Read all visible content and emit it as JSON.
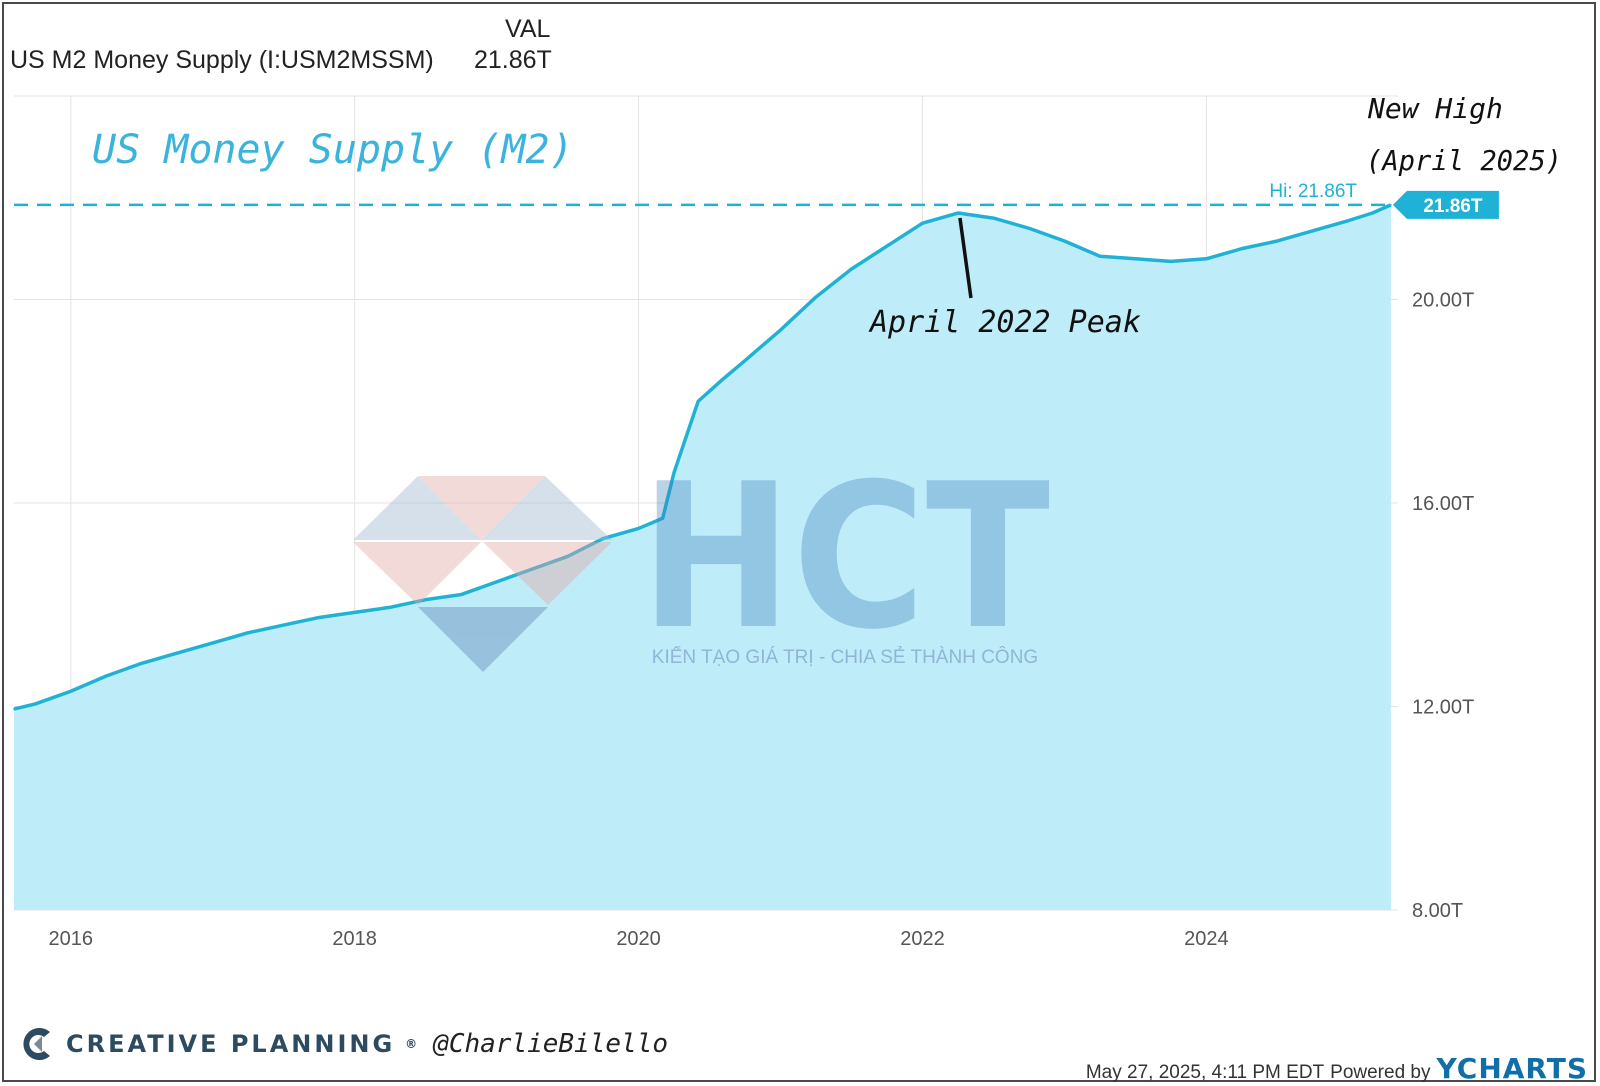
{
  "header": {
    "val_heading": "VAL",
    "series_name": "US M2 Money Supply (I:USM2MSSM)",
    "series_value": "21.86T"
  },
  "colors": {
    "line": "#1fb2d6",
    "fill": "#bfecf9",
    "title": "#3ab4dc",
    "grid": "#e3e3e3",
    "badge": "#1fb2d6"
  },
  "chart_data": {
    "type": "area",
    "title": "US Money Supply (M2)",
    "xlabel": "",
    "ylabel": "",
    "xlim": [
      2015.6,
      2025.35
    ],
    "ylim": [
      8,
      24
    ],
    "x_ticks": [
      2016,
      2018,
      2020,
      2022,
      2024
    ],
    "x_tick_labels": [
      "2016",
      "2018",
      "2020",
      "2022",
      "2024"
    ],
    "y_ticks": [
      8,
      12,
      16,
      20
    ],
    "y_tick_labels": [
      "8.00T",
      "12.00T",
      "16.00T",
      "20.00T"
    ],
    "grid": true,
    "series": [
      {
        "name": "",
        "x": [
          2015.6,
          2015.75,
          2016.0,
          2016.25,
          2016.5,
          2016.75,
          2017.0,
          2017.25,
          2017.5,
          2017.75,
          2018.0,
          2018.25,
          2018.5,
          2018.75,
          2019.0,
          2019.25,
          2019.5,
          2019.75,
          2020.0,
          2020.17,
          2020.25,
          2020.42,
          2020.58,
          2020.75,
          2021.0,
          2021.25,
          2021.5,
          2021.75,
          2022.0,
          2022.25,
          2022.5,
          2022.75,
          2023.0,
          2023.25,
          2023.5,
          2023.75,
          2024.0,
          2024.25,
          2024.5,
          2024.75,
          2025.0,
          2025.17,
          2025.3
        ],
        "y": [
          11.95,
          12.05,
          12.3,
          12.6,
          12.85,
          13.05,
          13.25,
          13.45,
          13.6,
          13.75,
          13.85,
          13.95,
          14.1,
          14.2,
          14.45,
          14.7,
          14.95,
          15.3,
          15.5,
          15.7,
          16.6,
          18.0,
          18.4,
          18.8,
          19.4,
          20.05,
          20.6,
          21.05,
          21.5,
          21.7,
          21.6,
          21.4,
          21.15,
          20.85,
          20.8,
          20.75,
          20.8,
          21.0,
          21.15,
          21.35,
          21.55,
          21.7,
          21.86
        ]
      }
    ],
    "reference_lines": [
      {
        "y": 21.86,
        "label": "Hi: 21.86T",
        "style": "dashed"
      }
    ],
    "last_value_badge": "21.86T",
    "annotations": [
      {
        "text": "April 2022 Peak",
        "x": 2022.25,
        "y": 21.72
      },
      {
        "text": "New High",
        "x": 2025.3,
        "y": 21.86
      },
      {
        "text": "(April 2025)",
        "x": 2025.3,
        "y": 21.86
      }
    ]
  },
  "watermark": {
    "letters": "HCT",
    "tagline": "KIẾN TẠO GIÁ TRỊ - CHIA SẺ THÀNH CÔNG",
    "logo": "diamond-logo"
  },
  "footer": {
    "brand": "CREATIVE PLANNING",
    "brand_mark": "®",
    "handle": "@CharlieBilello",
    "timestamp": "May 27, 2025, 4:11 PM EDT",
    "powered_by": "Powered by",
    "provider": "YCHARTS"
  }
}
